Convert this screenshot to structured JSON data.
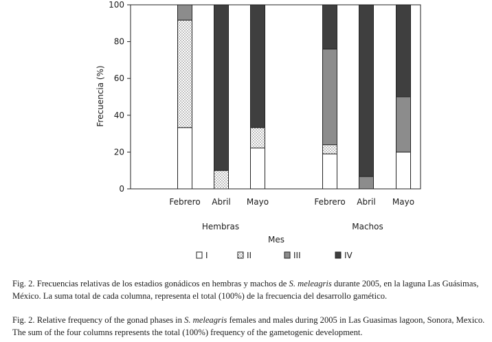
{
  "chart_data": {
    "type": "bar",
    "stacked": true,
    "ylabel": "Frecuencia (%)",
    "xlabel": "Mes",
    "ylim": [
      0,
      100
    ],
    "yticks": [
      0,
      20,
      40,
      60,
      80,
      100
    ],
    "grid": false,
    "legend_position": "bottom",
    "groups": [
      {
        "label": "Hembras",
        "categories": [
          "Febrero",
          "Abril",
          "Mayo"
        ]
      },
      {
        "label": "Machos",
        "categories": [
          "Febrero",
          "Abril",
          "Mayo"
        ]
      }
    ],
    "series": [
      {
        "name": "I",
        "pattern": "empty",
        "color": "#ffffff",
        "values": [
          33.3,
          0,
          22.2,
          19,
          0,
          20
        ]
      },
      {
        "name": "II",
        "pattern": "dotted",
        "color": "#ffffff",
        "values": [
          58.4,
          10,
          11.1,
          5,
          0,
          0
        ]
      },
      {
        "name": "III",
        "pattern": "solid",
        "color": "#8c8c8c",
        "values": [
          8.3,
          0,
          0,
          52,
          6.7,
          30
        ]
      },
      {
        "name": "IV",
        "pattern": "solid",
        "color": "#3f3f3f",
        "values": [
          0,
          90,
          66.7,
          24,
          93.3,
          50
        ]
      }
    ]
  },
  "captions": {
    "es": {
      "pre": "Fig. 2. Frecuencias relativas de los estadios gonádicos en hembras y machos de ",
      "species": "S. meleagris",
      "post": " durante 2005, en la laguna Las Guásimas, México. La suma total de cada columna, representa el total (100%) de la frecuencia del desarrollo gamético."
    },
    "en": {
      "pre": "Fig. 2. Relative frequency of the gonad phases in ",
      "species": "S. meleagris",
      "post": " females and males during 2005 in Las Guasimas lagoon, Sonora, Mexico. The sum of the four columns represents the total (100%) frequency of the gametogenic development."
    }
  }
}
